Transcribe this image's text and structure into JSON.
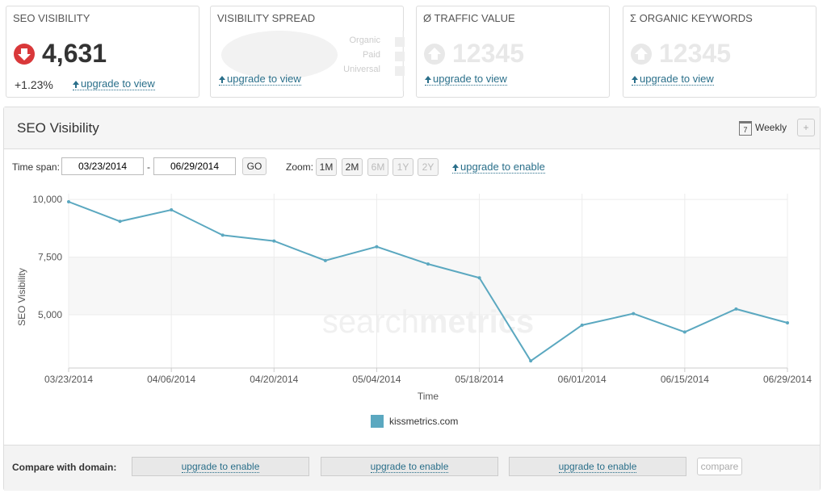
{
  "cards": [
    {
      "title": "SEO VISIBILITY",
      "value": "4,631",
      "change": "+1.23%",
      "link": "upgrade to view"
    },
    {
      "title": "VISIBILITY SPREAD",
      "legend": [
        "Organic",
        "Paid",
        "Universal"
      ],
      "link": "upgrade to view"
    },
    {
      "title": "Ø TRAFFIC VALUE",
      "value": "12345",
      "link": "upgrade to view"
    },
    {
      "title": "Σ ORGANIC KEYWORDS",
      "value": "12345",
      "link": "upgrade to view"
    }
  ],
  "panel": {
    "title": "SEO Visibility",
    "calendar": "7",
    "interval": "Weekly",
    "add": "+",
    "timespan_label": "Time span:",
    "from": "03/23/2014",
    "dash": "-",
    "to": "06/29/2014",
    "go": "GO",
    "zoom_label": "Zoom:",
    "zoom": [
      "1M",
      "2M",
      "6M",
      "1Y",
      "2Y"
    ],
    "zoom_link": "upgrade to enable",
    "watermark": [
      "search",
      "metrics"
    ]
  },
  "chart_data": {
    "type": "line",
    "categories": [
      "03/23/2014",
      null,
      "04/06/2014",
      null,
      "04/20/2014",
      null,
      "05/04/2014",
      null,
      "05/18/2014",
      null,
      "06/01/2014",
      null,
      "06/15/2014",
      null,
      "06/29/2014"
    ],
    "series": [
      {
        "name": "kissmetrics.com",
        "color": "#5ba8c0",
        "values": [
          9900,
          9050,
          9550,
          8450,
          8200,
          7350,
          7950,
          7200,
          6600,
          3000,
          4550,
          5050,
          4250,
          5250,
          4650
        ]
      }
    ],
    "ylim": [
      2690,
      10250
    ],
    "yticks": [
      {
        "value": 5000,
        "label": "5,000"
      },
      {
        "value": 7500,
        "label": "7,500"
      },
      {
        "value": 10000,
        "label": "10,000"
      }
    ],
    "y_label": "SEO Visibility",
    "x_label": "Time",
    "grid": true
  },
  "compare": {
    "label": "Compare with domain:",
    "slots": [
      "upgrade to enable",
      "upgrade to enable",
      "upgrade to enable"
    ],
    "button": "compare"
  }
}
